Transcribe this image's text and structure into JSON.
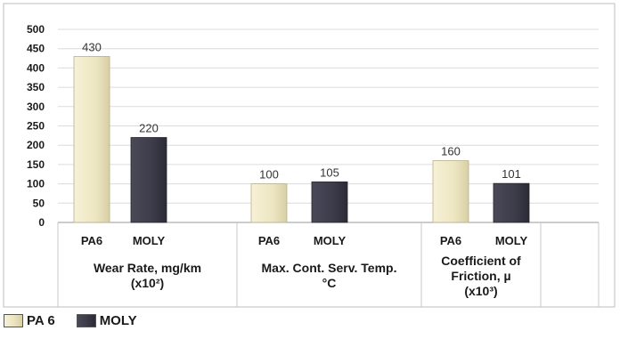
{
  "chart_data": {
    "type": "bar",
    "ylim": [
      0,
      500
    ],
    "yticks": [
      0,
      50,
      100,
      150,
      200,
      250,
      300,
      350,
      400,
      450,
      500
    ],
    "groups": [
      {
        "subcategories": [
          "PA6",
          "MOLY"
        ],
        "label_lines": [
          "Wear Rate, mg/km",
          "(x10²)"
        ]
      },
      {
        "subcategories": [
          "PA6",
          "MOLY"
        ],
        "label_lines": [
          "Max. Cont. Serv. Temp.",
          "°C"
        ]
      },
      {
        "subcategories": [
          "PA6",
          "MOLY"
        ],
        "label_lines": [
          "Coefficient of",
          "Friction, µ",
          "(x10³)"
        ]
      }
    ],
    "series": [
      {
        "name": "PA 6",
        "color": "#ede6c2",
        "values": [
          430,
          100,
          160
        ]
      },
      {
        "name": "MOLY",
        "color": "#3d3c4a",
        "values": [
          220,
          105,
          101
        ]
      }
    ],
    "legend_position": "bottom-left",
    "grid": true
  }
}
